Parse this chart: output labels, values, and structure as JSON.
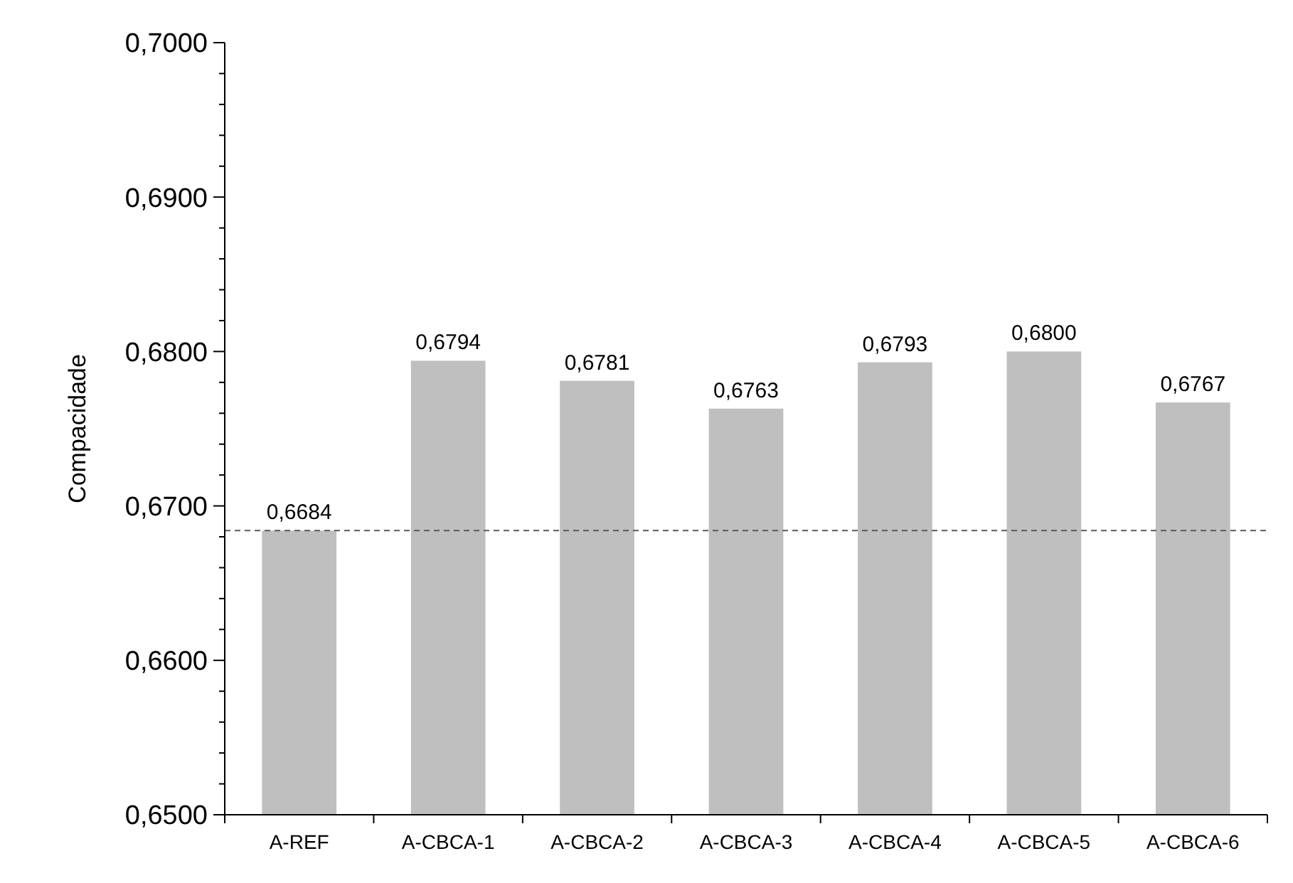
{
  "chart_data": {
    "type": "bar",
    "ylabel": "Compacidade",
    "categories": [
      "A-REF",
      "A-CBCA-1",
      "A-CBCA-2",
      "A-CBCA-3",
      "A-CBCA-4",
      "A-CBCA-5",
      "A-CBCA-6"
    ],
    "values": [
      0.6684,
      0.6794,
      0.6781,
      0.6763,
      0.6793,
      0.68,
      0.6767
    ],
    "value_labels": [
      "0,6684",
      "0,6794",
      "0,6781",
      "0,6763",
      "0,6793",
      "0,6800",
      "0,6767"
    ],
    "color": "#bfbfbf",
    "ylim": [
      0.65,
      0.7
    ],
    "yticks": [
      {
        "value": 0.65,
        "label": "0,6500"
      },
      {
        "value": 0.652,
        "label": null
      },
      {
        "value": 0.654,
        "label": null
      },
      {
        "value": 0.656,
        "label": null
      },
      {
        "value": 0.658,
        "label": null
      },
      {
        "value": 0.66,
        "label": "0,6600"
      },
      {
        "value": 0.662,
        "label": null
      },
      {
        "value": 0.664,
        "label": null
      },
      {
        "value": 0.666,
        "label": null
      },
      {
        "value": 0.668,
        "label": null
      },
      {
        "value": 0.67,
        "label": "0,6700"
      },
      {
        "value": 0.672,
        "label": null
      },
      {
        "value": 0.674,
        "label": null
      },
      {
        "value": 0.676,
        "label": null
      },
      {
        "value": 0.678,
        "label": null
      },
      {
        "value": 0.68,
        "label": "0,6800"
      },
      {
        "value": 0.682,
        "label": null
      },
      {
        "value": 0.684,
        "label": null
      },
      {
        "value": 0.686,
        "label": null
      },
      {
        "value": 0.688,
        "label": null
      },
      {
        "value": 0.69,
        "label": "0,6900"
      },
      {
        "value": 0.692,
        "label": null
      },
      {
        "value": 0.694,
        "label": null
      },
      {
        "value": 0.696,
        "label": null
      },
      {
        "value": 0.698,
        "label": null
      },
      {
        "value": 0.7,
        "label": "0,7000"
      }
    ],
    "ref_lines": [
      {
        "axis": "y",
        "value": 0.6684,
        "color": "#595959",
        "line_style": "dashed"
      }
    ],
    "grid": false
  }
}
